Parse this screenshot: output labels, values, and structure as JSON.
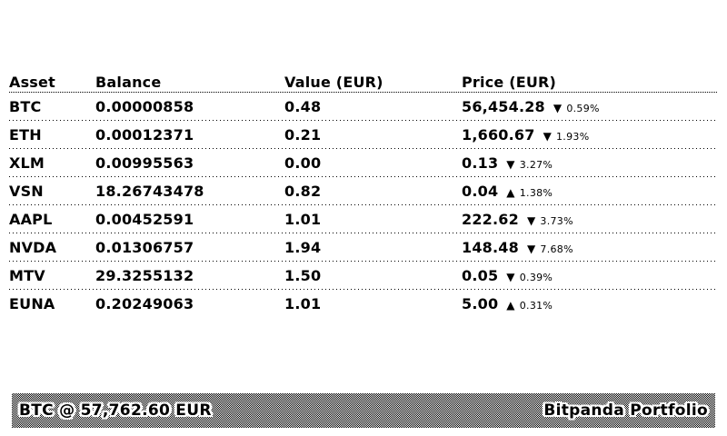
{
  "colors": {
    "foreground": "#000000",
    "background": "#ffffff"
  },
  "table": {
    "columns": [
      "Asset",
      "Balance",
      "Value (EUR)",
      "Price (EUR)"
    ],
    "rows": [
      {
        "asset": "BTC",
        "balance": "0.00000858",
        "value": "0.48",
        "price": "56,454.28",
        "direction": "down",
        "arrow": "▼",
        "change_pct": "0.59%"
      },
      {
        "asset": "ETH",
        "balance": "0.00012371",
        "value": "0.21",
        "price": "1,660.67",
        "direction": "down",
        "arrow": "▼",
        "change_pct": "1.93%"
      },
      {
        "asset": "XLM",
        "balance": "0.00995563",
        "value": "0.00",
        "price": "0.13",
        "direction": "down",
        "arrow": "▼",
        "change_pct": "3.27%"
      },
      {
        "asset": "VSN",
        "balance": "18.26743478",
        "value": "0.82",
        "price": "0.04",
        "direction": "up",
        "arrow": "▲",
        "change_pct": "1.38%"
      },
      {
        "asset": "AAPL",
        "balance": "0.00452591",
        "value": "1.01",
        "price": "222.62",
        "direction": "down",
        "arrow": "▼",
        "change_pct": "3.73%"
      },
      {
        "asset": "NVDA",
        "balance": "0.01306757",
        "value": "1.94",
        "price": "148.48",
        "direction": "down",
        "arrow": "▼",
        "change_pct": "7.68%"
      },
      {
        "asset": "MTV",
        "balance": "29.3255132",
        "value": "1.50",
        "price": "0.05",
        "direction": "down",
        "arrow": "▼",
        "change_pct": "0.39%"
      },
      {
        "asset": "EUNA",
        "balance": "0.20249063",
        "value": "1.01",
        "price": "5.00",
        "direction": "up",
        "arrow": "▲",
        "change_pct": "0.31%"
      }
    ]
  },
  "footer": {
    "ticker": "BTC @ 57,762.60 EUR",
    "title": "Bitpanda Portfolio"
  }
}
